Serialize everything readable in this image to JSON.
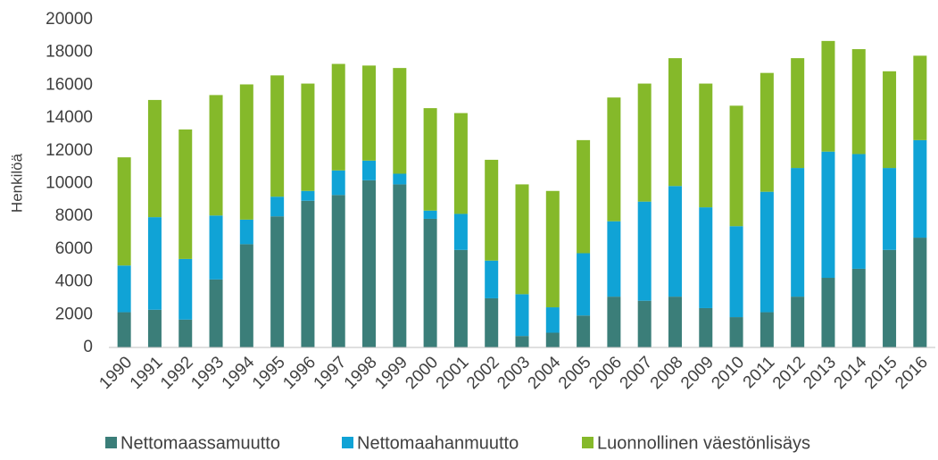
{
  "chart_data": {
    "type": "bar",
    "stacked": true,
    "y_label": "Henkilöä",
    "categories": [
      "1990",
      "1991",
      "1992",
      "1993",
      "1994",
      "1995",
      "1996",
      "1997",
      "1998",
      "1999",
      "2000",
      "2001",
      "2002",
      "2003",
      "2004",
      "2005",
      "2006",
      "2007",
      "2008",
      "2009",
      "2010",
      "2011",
      "2012",
      "2013",
      "2014",
      "2015",
      "2016"
    ],
    "series": [
      {
        "name": "Nettomaassamuutto",
        "color": "#3b7e79",
        "values": [
          2150,
          2300,
          1700,
          4150,
          6300,
          8000,
          8950,
          9300,
          10200,
          9950,
          7850,
          5950,
          3000,
          700,
          900,
          1950,
          3100,
          2850,
          3100,
          2400,
          1850,
          2150,
          3100,
          4250,
          4800,
          5950,
          6700
        ]
      },
      {
        "name": "Nettomaahanmuutto",
        "color": "#10a3d6",
        "values": [
          2850,
          5650,
          3700,
          3900,
          1500,
          1200,
          600,
          1500,
          1200,
          650,
          500,
          2200,
          2300,
          2550,
          1550,
          3800,
          4600,
          6050,
          6750,
          6150,
          5550,
          7350,
          7850,
          7700,
          7000,
          5000,
          5950
        ]
      },
      {
        "name": "Luonnollinen väestönlisäys",
        "color": "#85b92a",
        "values": [
          6600,
          7150,
          7900,
          7350,
          8250,
          7400,
          6550,
          6500,
          5800,
          6450,
          6250,
          6150,
          6150,
          6700,
          7100,
          6900,
          7550,
          7200,
          7800,
          7550,
          7350,
          7250,
          6700,
          6750,
          6400,
          5900,
          5150
        ]
      }
    ],
    "ylim": [
      0,
      20000
    ],
    "yticks": [
      0,
      2000,
      4000,
      6000,
      8000,
      10000,
      12000,
      14000,
      16000,
      18000,
      20000
    ],
    "legend": "bottom"
  }
}
